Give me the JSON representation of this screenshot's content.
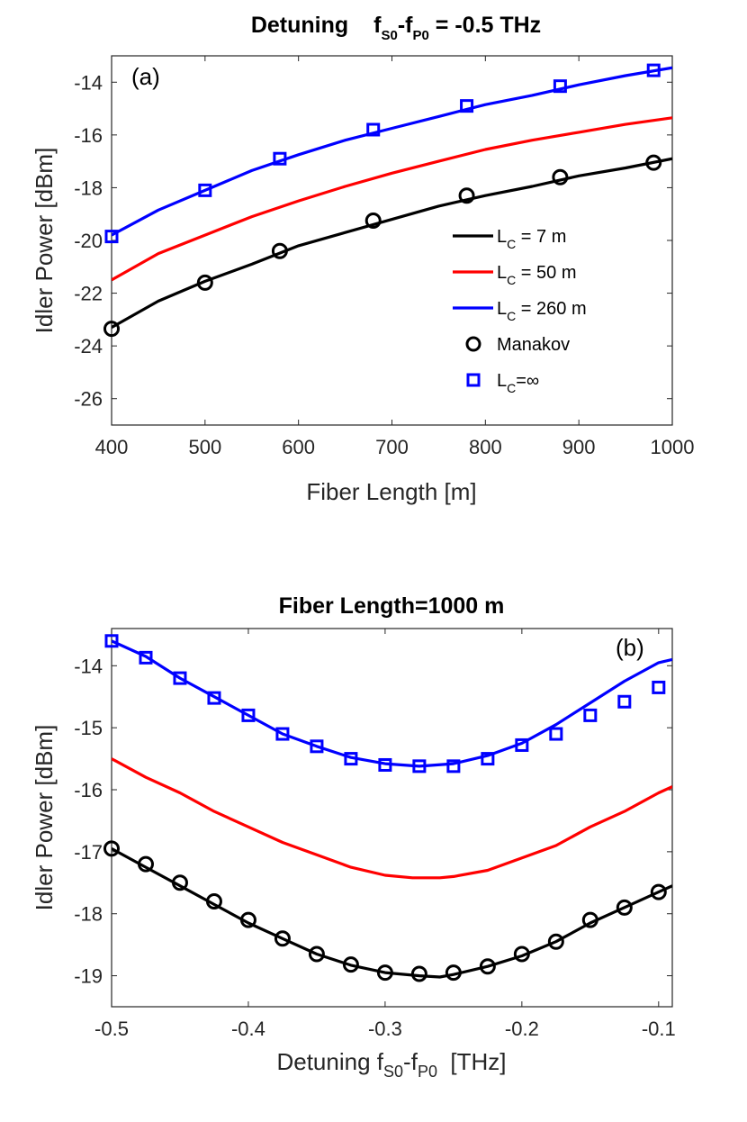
{
  "chart_data": [
    {
      "type": "line",
      "panel_label": "(a)",
      "title": {
        "main": "Detuning",
        "f1": "f",
        "f1_sub": "S0",
        "dash": "-",
        "f2": "f",
        "f2_sub": "P0",
        "rest": " = -0.5 THz"
      },
      "xlabel": "Fiber Length [m]",
      "ylabel": "Idler Power [dBm]",
      "xlim": [
        400,
        1000
      ],
      "ylim": [
        -27,
        -13
      ],
      "xticks": [
        "400",
        "500",
        "600",
        "700",
        "800",
        "900",
        "1000"
      ],
      "xtick_values": [
        400,
        500,
        600,
        700,
        800,
        900,
        1000
      ],
      "yticks": [
        "-26",
        "-24",
        "-22",
        "-20",
        "-18",
        "-16",
        "-14"
      ],
      "ytick_values": [
        -26,
        -24,
        -22,
        -20,
        -18,
        -16,
        -14
      ],
      "grid": false,
      "legend_position": "right-middle",
      "series": [
        {
          "name": "7 m",
          "legend": {
            "prefix": "L",
            "sub": "C",
            "text": " = 7 m"
          },
          "style": "line",
          "color": "#000000",
          "x": [
            400,
            450,
            500,
            550,
            600,
            650,
            700,
            750,
            800,
            850,
            900,
            950,
            1000
          ],
          "y": [
            -23.3,
            -22.3,
            -21.55,
            -20.9,
            -20.2,
            -19.7,
            -19.2,
            -18.7,
            -18.3,
            -17.95,
            -17.55,
            -17.25,
            -16.9
          ]
        },
        {
          "name": "50 m",
          "legend": {
            "prefix": "L",
            "sub": "C",
            "text": " = 50 m"
          },
          "style": "line",
          "color": "#ff0000",
          "x": [
            400,
            450,
            500,
            550,
            600,
            650,
            700,
            750,
            800,
            850,
            900,
            950,
            1000
          ],
          "y": [
            -21.5,
            -20.5,
            -19.8,
            -19.1,
            -18.5,
            -17.95,
            -17.45,
            -17.0,
            -16.55,
            -16.2,
            -15.9,
            -15.6,
            -15.35
          ]
        },
        {
          "name": "260 m",
          "legend": {
            "prefix": "L",
            "sub": "C",
            "text": " = 260 m"
          },
          "style": "line",
          "color": "#0000ff",
          "x": [
            400,
            450,
            500,
            550,
            600,
            650,
            700,
            750,
            800,
            850,
            900,
            950,
            1000
          ],
          "y": [
            -19.8,
            -18.85,
            -18.1,
            -17.35,
            -16.75,
            -16.2,
            -15.75,
            -15.3,
            -14.85,
            -14.5,
            -14.1,
            -13.75,
            -13.45
          ]
        },
        {
          "name": "Manakov",
          "legend": {
            "prefix": "",
            "sub": "",
            "text": "Manakov"
          },
          "style": "circle",
          "color": "#000000",
          "x": [
            400,
            500,
            580,
            680,
            780,
            880,
            980
          ],
          "y": [
            -23.35,
            -21.6,
            -20.4,
            -19.25,
            -18.3,
            -17.6,
            -17.05
          ]
        },
        {
          "name": "∞",
          "legend": {
            "prefix": "L",
            "sub": "C",
            "text": "=∞"
          },
          "style": "square",
          "color": "#0000ff",
          "x": [
            400,
            500,
            580,
            680,
            780,
            880,
            980
          ],
          "y": [
            -19.85,
            -18.1,
            -16.9,
            -15.8,
            -14.9,
            -14.15,
            -13.55
          ]
        }
      ]
    },
    {
      "type": "line",
      "panel_label": "(b)",
      "title": "Fiber Length=1000 m",
      "xlabel": {
        "pre": "Detuning ",
        "f1": "f",
        "f1_sub": "S0",
        "dash": "-",
        "f2": "f",
        "f2_sub": "P0",
        "post": "  [THz]"
      },
      "ylabel": "Idler Power [dBm]",
      "xlim": [
        -0.5,
        -0.09
      ],
      "ylim": [
        -19.5,
        -13.4
      ],
      "xticks": [
        "-0.5",
        "-0.4",
        "-0.3",
        "-0.2",
        "-0.1"
      ],
      "xtick_values": [
        -0.5,
        -0.4,
        -0.3,
        -0.2,
        -0.1
      ],
      "yticks": [
        "-19",
        "-18",
        "-17",
        "-16",
        "-15",
        "-14"
      ],
      "ytick_values": [
        -19,
        -18,
        -17,
        -16,
        -15,
        -14
      ],
      "grid": false,
      "series": [
        {
          "name": "7 m",
          "style": "line",
          "color": "#000000",
          "x": [
            -0.5,
            -0.475,
            -0.45,
            -0.425,
            -0.4,
            -0.375,
            -0.35,
            -0.325,
            -0.3,
            -0.275,
            -0.26,
            -0.25,
            -0.225,
            -0.2,
            -0.175,
            -0.15,
            -0.125,
            -0.1,
            -0.09
          ],
          "y": [
            -16.95,
            -17.25,
            -17.55,
            -17.85,
            -18.15,
            -18.4,
            -18.65,
            -18.83,
            -18.95,
            -19.0,
            -19.02,
            -18.98,
            -18.85,
            -18.68,
            -18.45,
            -18.15,
            -17.9,
            -17.65,
            -17.55
          ]
        },
        {
          "name": "50 m",
          "style": "line",
          "color": "#ff0000",
          "x": [
            -0.5,
            -0.475,
            -0.45,
            -0.425,
            -0.4,
            -0.375,
            -0.35,
            -0.325,
            -0.3,
            -0.28,
            -0.26,
            -0.25,
            -0.225,
            -0.2,
            -0.175,
            -0.15,
            -0.125,
            -0.1,
            -0.09
          ],
          "y": [
            -15.5,
            -15.8,
            -16.05,
            -16.35,
            -16.6,
            -16.85,
            -17.05,
            -17.25,
            -17.38,
            -17.42,
            -17.42,
            -17.4,
            -17.3,
            -17.1,
            -16.9,
            -16.6,
            -16.35,
            -16.05,
            -15.95
          ]
        },
        {
          "name": "260 m",
          "style": "line",
          "color": "#0000ff",
          "x": [
            -0.5,
            -0.475,
            -0.45,
            -0.425,
            -0.4,
            -0.375,
            -0.35,
            -0.325,
            -0.3,
            -0.275,
            -0.25,
            -0.225,
            -0.2,
            -0.175,
            -0.15,
            -0.125,
            -0.1,
            -0.09
          ],
          "y": [
            -13.6,
            -13.85,
            -14.2,
            -14.5,
            -14.8,
            -15.1,
            -15.3,
            -15.48,
            -15.58,
            -15.62,
            -15.58,
            -15.45,
            -15.25,
            -14.95,
            -14.6,
            -14.25,
            -13.95,
            -13.9
          ]
        },
        {
          "name": "Manakov",
          "style": "circle",
          "color": "#000000",
          "x": [
            -0.5,
            -0.475,
            -0.45,
            -0.425,
            -0.4,
            -0.375,
            -0.35,
            -0.325,
            -0.3,
            -0.275,
            -0.25,
            -0.225,
            -0.2,
            -0.175,
            -0.15,
            -0.125,
            -0.1
          ],
          "y": [
            -16.95,
            -17.2,
            -17.5,
            -17.8,
            -18.1,
            -18.4,
            -18.65,
            -18.82,
            -18.95,
            -18.97,
            -18.95,
            -18.85,
            -18.65,
            -18.45,
            -18.1,
            -17.9,
            -17.65
          ]
        },
        {
          "name": "∞",
          "style": "square",
          "color": "#0000ff",
          "x": [
            -0.5,
            -0.475,
            -0.45,
            -0.425,
            -0.4,
            -0.375,
            -0.35,
            -0.325,
            -0.3,
            -0.275,
            -0.25,
            -0.225,
            -0.2,
            -0.175,
            -0.15,
            -0.125,
            -0.1
          ],
          "y": [
            -13.6,
            -13.87,
            -14.2,
            -14.52,
            -14.8,
            -15.1,
            -15.3,
            -15.5,
            -15.6,
            -15.62,
            -15.62,
            -15.5,
            -15.28,
            -15.1,
            -14.8,
            -14.58,
            -14.35
          ]
        }
      ]
    }
  ]
}
